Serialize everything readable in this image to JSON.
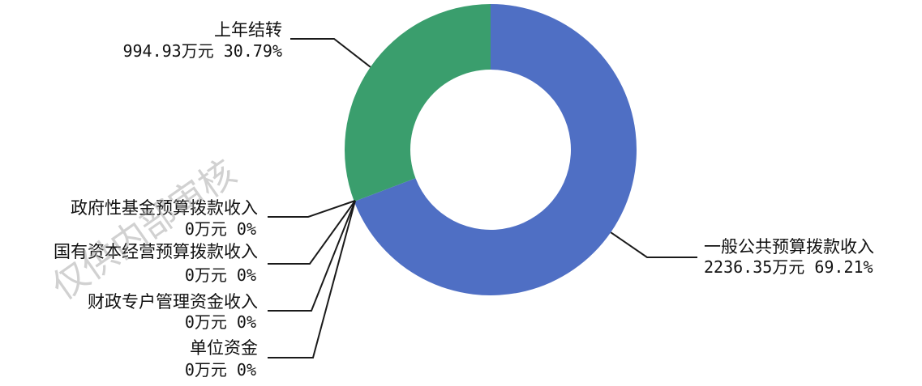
{
  "watermark": "仅供内部审核",
  "chart_data": {
    "type": "pie",
    "style": "donut",
    "unit": "万元",
    "slices": [
      {
        "name": "一般公共预算拨款收入",
        "value": 2236.35,
        "percent": "69.21%",
        "value_label": "2236.35万元",
        "color": "#4f6fc4"
      },
      {
        "name": "上年结转",
        "value": 994.93,
        "percent": "30.79%",
        "value_label": "994.93万元",
        "color": "#3a9e6d"
      },
      {
        "name": "政府性基金预算拨款收入",
        "value": 0,
        "percent": "0%",
        "value_label": "0万元",
        "color": "#c0504d"
      },
      {
        "name": "国有资本经营预算拨款收入",
        "value": 0,
        "percent": "0%",
        "value_label": "0万元",
        "color": "#8064a2"
      },
      {
        "name": "财政专户管理资金收入",
        "value": 0,
        "percent": "0%",
        "value_label": "0万元",
        "color": "#f79646"
      },
      {
        "name": "单位资金",
        "value": 0,
        "percent": "0%",
        "value_label": "0万元",
        "color": "#4bacc6"
      }
    ]
  }
}
